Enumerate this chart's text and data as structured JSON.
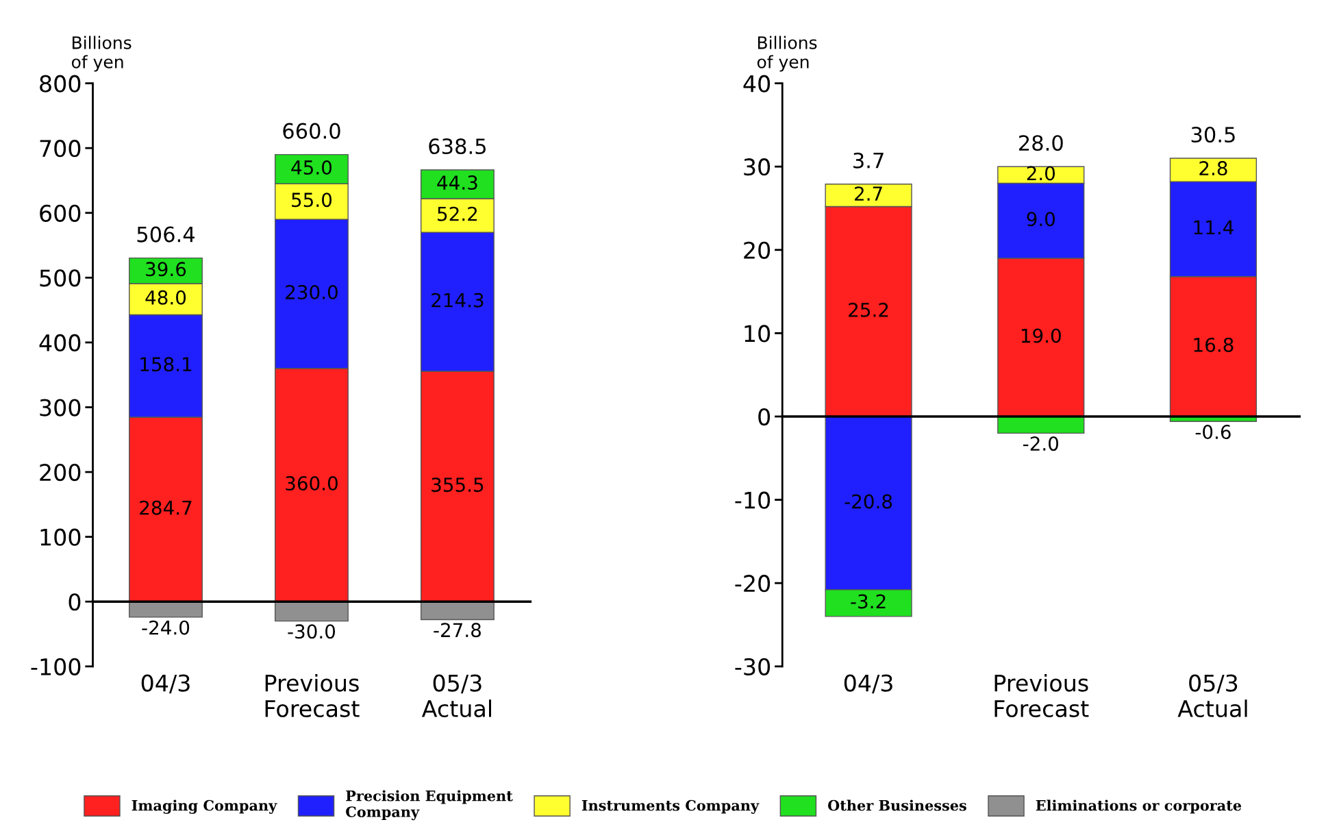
{
  "chart_data": [
    {
      "type": "bar",
      "stacked": true,
      "ylabel": "Billions\nof yen",
      "categories": [
        "04/3",
        "Previous\nForecast",
        "05/3\nActual"
      ],
      "ylim": [
        -100,
        800
      ],
      "yticks": [
        -100,
        0,
        100,
        200,
        300,
        400,
        500,
        600,
        700,
        800
      ],
      "legend": "bottom",
      "totals": [
        "506.4",
        "660.0",
        "638.5"
      ],
      "series": [
        {
          "name": "Imaging Company",
          "color": "#ff2020",
          "values": [
            284.7,
            360.0,
            355.5
          ],
          "value_labels": [
            "284.7",
            "360.0",
            "355.5"
          ]
        },
        {
          "name": "Precision Equipment\nCompany",
          "color": "#2020ff",
          "values": [
            158.1,
            230.0,
            214.3
          ],
          "value_labels": [
            "158.1",
            "230.0",
            "214.3"
          ]
        },
        {
          "name": "Instruments Company",
          "color": "#ffff30",
          "values": [
            48.0,
            55.0,
            52.2
          ],
          "value_labels": [
            "48.0",
            "55.0",
            "52.2"
          ]
        },
        {
          "name": "Other Businesses",
          "color": "#20e020",
          "values": [
            39.6,
            45.0,
            44.3
          ],
          "value_labels": [
            "39.6",
            "45.0",
            "44.3"
          ]
        },
        {
          "name": "Eliminations or corporate",
          "color": "#909090",
          "values": [
            -24.0,
            -30.0,
            -27.8
          ],
          "value_labels": [
            "-24.0",
            "-30.0",
            "-27.8"
          ]
        }
      ]
    },
    {
      "type": "bar",
      "stacked": true,
      "ylabel": "Billions\nof yen",
      "categories": [
        "04/3",
        "Previous\nForecast",
        "05/3\nActual"
      ],
      "ylim": [
        -30,
        40
      ],
      "yticks": [
        -30,
        -20,
        -10,
        0,
        10,
        20,
        30,
        40
      ],
      "totals": [
        "3.7",
        "28.0",
        "30.5"
      ],
      "series": [
        {
          "color": "#ff2020",
          "values": [
            25.2,
            19.0,
            16.8
          ],
          "value_labels": [
            "25.2",
            "19.0",
            "16.8"
          ]
        },
        {
          "color": "#2020ff",
          "values": [
            -20.8,
            9.0,
            11.4
          ],
          "value_labels": [
            "-20.8",
            "9.0",
            "11.4"
          ]
        },
        {
          "color": "#ffff30",
          "values": [
            2.7,
            2.0,
            2.8
          ],
          "value_labels": [
            "2.7",
            "2.0",
            "2.8"
          ]
        },
        {
          "color": "#20e020",
          "values": [
            -3.2,
            -2.0,
            -0.6
          ],
          "value_labels": [
            "-3.2",
            "-2.0",
            "-0.6"
          ]
        }
      ]
    }
  ]
}
